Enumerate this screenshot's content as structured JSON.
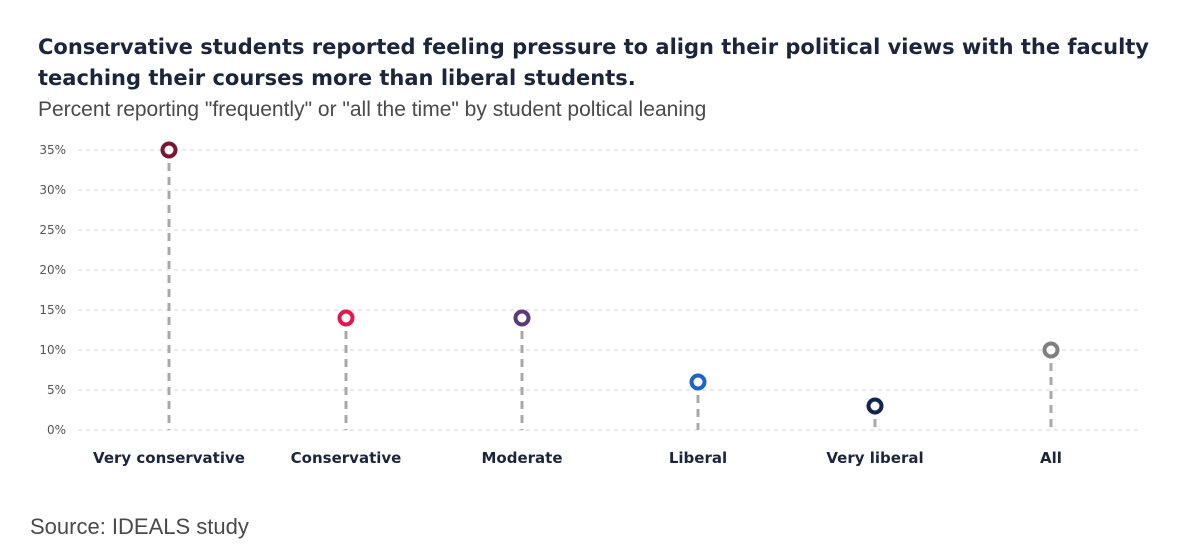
{
  "title": "Conservative students reported feeling pressure to align their political views with the faculty teaching their courses more than liberal students.",
  "subtitle": "Percent reporting \"frequently\" or \"all the time\" by student poltical leaning",
  "source": "Source: IDEALS study",
  "chart_data": {
    "type": "scatter",
    "style": "lollipop",
    "title": "Conservative students reported feeling pressure to align their political views with the faculty teaching their courses more than liberal students.",
    "subtitle": "Percent reporting \"frequently\" or \"all the time\" by student poltical leaning",
    "xlabel": "",
    "ylabel": "",
    "categories": [
      "Very conservative",
      "Conservative",
      "Moderate",
      "Liberal",
      "Very liberal",
      "All"
    ],
    "values": [
      35,
      14,
      14,
      6,
      3,
      10
    ],
    "colors": [
      "#7b1631",
      "#e0184d",
      "#5b3a78",
      "#1f64c3",
      "#10264e",
      "#808080"
    ],
    "ylim": [
      0,
      35
    ],
    "yticks": [
      0,
      5,
      10,
      15,
      20,
      25,
      30,
      35
    ],
    "ytick_labels": [
      "0%",
      "5%",
      "10%",
      "15%",
      "20%",
      "25%",
      "30%",
      "35%"
    ],
    "grid": true,
    "legend": "none"
  }
}
